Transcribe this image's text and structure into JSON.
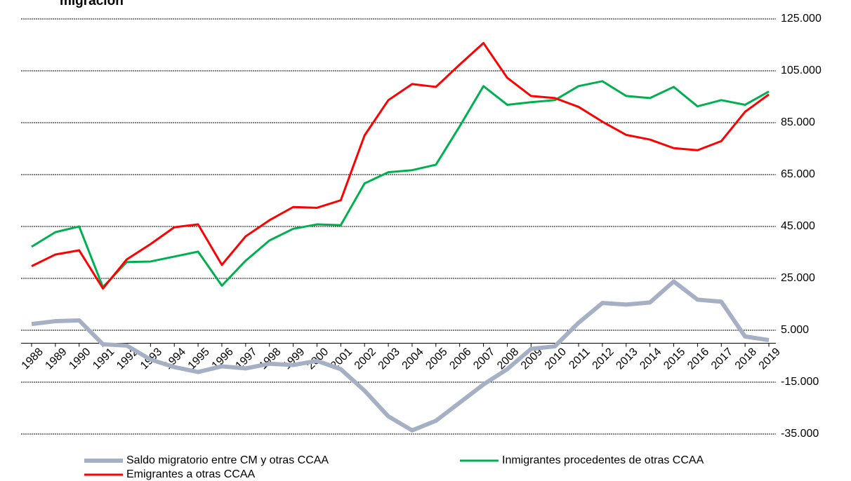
{
  "chart_data": {
    "type": "line",
    "title": "migración",
    "categories": [
      "1988",
      "1989",
      "1990",
      "1991",
      "1992",
      "1993",
      "1994",
      "1995",
      "1996",
      "1997",
      "1998",
      "1999",
      "2000",
      "2001",
      "2002",
      "2003",
      "2004",
      "2005",
      "2006",
      "2007",
      "2008",
      "2009",
      "2010",
      "2011",
      "2012",
      "2013",
      "2014",
      "2015",
      "2016",
      "2017",
      "2018",
      "2019"
    ],
    "series": [
      {
        "name": "Saldo migratorio entre CM y otras CCAA",
        "color": "#a6b0c4",
        "width": 6,
        "values": [
          7400,
          8500,
          8800,
          -400,
          -900,
          -6300,
          -9200,
          -11100,
          -8900,
          -9700,
          -7900,
          -8400,
          -6800,
          -10000,
          -18300,
          -28200,
          -33600,
          -29900,
          -22900,
          -15900,
          -10000,
          -2200,
          -1200,
          7900,
          15500,
          14900,
          15700,
          23800,
          16800,
          16000,
          2600,
          1200
        ]
      },
      {
        "name": "Inmigrantes procedentes de otras CCAA",
        "color": "#00b050",
        "width": 3,
        "values": [
          37200,
          42800,
          45000,
          21600,
          31300,
          31500,
          33400,
          35300,
          22200,
          31800,
          39600,
          44100,
          45800,
          45500,
          61600,
          65900,
          66700,
          68800,
          83600,
          99100,
          91900,
          92900,
          93700,
          99100,
          101000,
          95300,
          94500,
          98800,
          91300,
          93700,
          91900,
          97000
        ]
      },
      {
        "name": "Emigrantes a otras CCAA",
        "color": "#ff0000",
        "width": 3,
        "values": [
          29700,
          34200,
          35800,
          21100,
          32300,
          38200,
          44700,
          45800,
          30200,
          41200,
          47400,
          52500,
          52200,
          55100,
          80100,
          93700,
          99900,
          98800,
          107400,
          115700,
          102300,
          95300,
          94500,
          91100,
          85400,
          80300,
          78500,
          75200,
          74400,
          77900,
          89200,
          95900
        ]
      }
    ],
    "ylim": [
      -35000,
      125000
    ],
    "yticks": [
      {
        "value": 125000,
        "label": "125.000"
      },
      {
        "value": 105000,
        "label": "105.000"
      },
      {
        "value": 85000,
        "label": "85.000"
      },
      {
        "value": 65000,
        "label": "65.000"
      },
      {
        "value": 45000,
        "label": "45.000"
      },
      {
        "value": 25000,
        "label": "25.000"
      },
      {
        "value": 5000,
        "label": "5.000"
      },
      {
        "value": -15000,
        "label": "-15.000"
      },
      {
        "value": -35000,
        "label": "-35.000"
      }
    ],
    "grid": true
  }
}
